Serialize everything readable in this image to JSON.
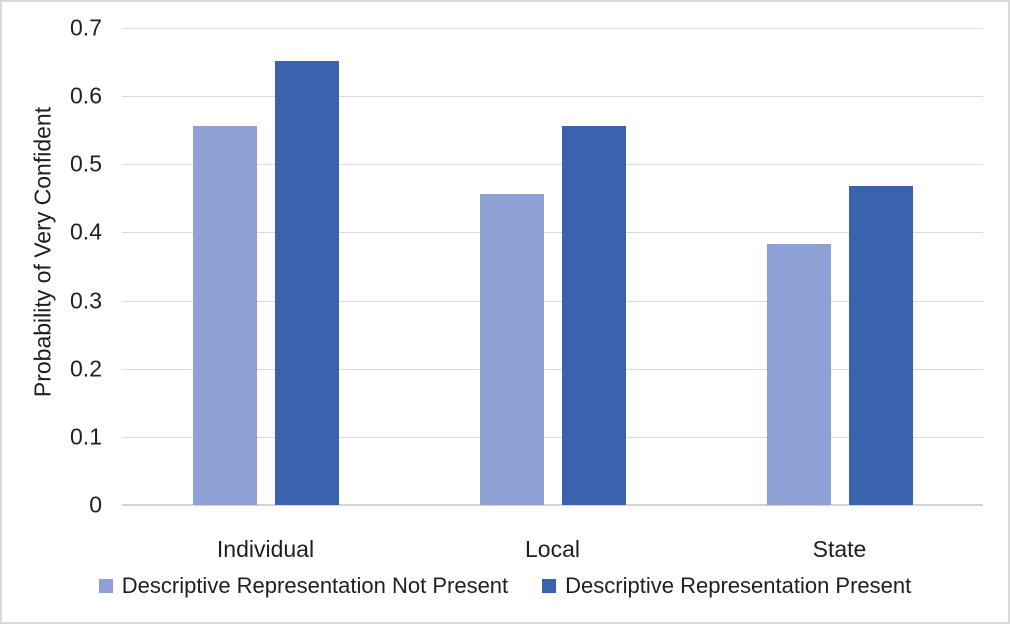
{
  "chart_data": {
    "type": "bar",
    "title": "",
    "xlabel": "",
    "ylabel": "Probability of Very Confident",
    "categories": [
      "Individual",
      "Local",
      "State"
    ],
    "series": [
      {
        "name": "Descriptive Representation Not Present",
        "color": "#8FA0D4",
        "values": [
          0.556,
          0.457,
          0.383
        ]
      },
      {
        "name": "Descriptive Representation Present",
        "color": "#3A63AD",
        "values": [
          0.651,
          0.556,
          0.468
        ]
      }
    ],
    "ylim": [
      0,
      0.7
    ],
    "yticks": [
      0,
      0.1,
      0.2,
      0.3,
      0.4,
      0.5,
      0.6,
      0.7
    ],
    "ytick_labels": [
      "0",
      "0.1",
      "0.2",
      "0.3",
      "0.4",
      "0.5",
      "0.6",
      "0.7"
    ],
    "grid": "horizontal",
    "legend_position": "bottom"
  },
  "style": {
    "background": "#FFFFFF",
    "frame_border_color": "#D9D9D9",
    "gridline_color": "#D9D9D9",
    "baseline_color": "#D4D4D4",
    "text_color": "#1F1F1F",
    "series_color_not_present": "#8FA0D4",
    "series_color_present": "#3A63AD"
  }
}
